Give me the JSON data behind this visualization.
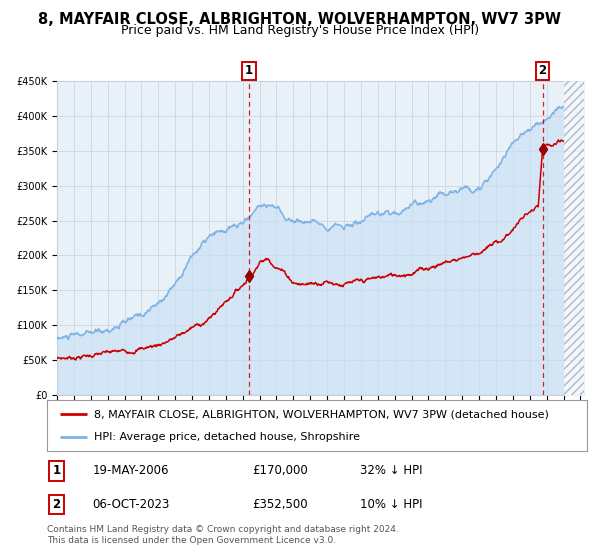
{
  "title": "8, MAYFAIR CLOSE, ALBRIGHTON, WOLVERHAMPTON, WV7 3PW",
  "subtitle": "Price paid vs. HM Land Registry's House Price Index (HPI)",
  "ylim": [
    0,
    450000
  ],
  "yticks": [
    0,
    50000,
    100000,
    150000,
    200000,
    250000,
    300000,
    350000,
    400000,
    450000
  ],
  "ytick_labels": [
    "£0",
    "£50K",
    "£100K",
    "£150K",
    "£200K",
    "£250K",
    "£300K",
    "£350K",
    "£400K",
    "£450K"
  ],
  "xlim_start": 1995.0,
  "xlim_end": 2026.2,
  "xticks": [
    1995,
    1996,
    1997,
    1998,
    1999,
    2000,
    2001,
    2002,
    2003,
    2004,
    2005,
    2006,
    2007,
    2008,
    2009,
    2010,
    2011,
    2012,
    2013,
    2014,
    2015,
    2016,
    2017,
    2018,
    2019,
    2020,
    2021,
    2022,
    2023,
    2024,
    2025,
    2026
  ],
  "red_line_color": "#cc0000",
  "blue_line_color": "#7fb2e5",
  "blue_fill_color": "#c8dff5",
  "marker_color": "#990000",
  "vline_color": "#cc0000",
  "grid_color": "#c8d0e0",
  "background_color": "#ffffff",
  "plot_bg_color": "#e8f0f8",
  "sale1_x": 2006.38,
  "sale1_y": 170000,
  "sale2_x": 2023.76,
  "sale2_y": 352500,
  "hatch_start": 2025.0,
  "legend_line1": "8, MAYFAIR CLOSE, ALBRIGHTON, WOLVERHAMPTON, WV7 3PW (detached house)",
  "legend_line2": "HPI: Average price, detached house, Shropshire",
  "table_row1": [
    "1",
    "19-MAY-2006",
    "£170,000",
    "32% ↓ HPI"
  ],
  "table_row2": [
    "2",
    "06-OCT-2023",
    "£352,500",
    "10% ↓ HPI"
  ],
  "footer": "Contains HM Land Registry data © Crown copyright and database right 2024.\nThis data is licensed under the Open Government Licence v3.0.",
  "title_fontsize": 10.5,
  "subtitle_fontsize": 9,
  "tick_fontsize": 7,
  "legend_fontsize": 8,
  "table_fontsize": 8.5,
  "footer_fontsize": 6.5
}
